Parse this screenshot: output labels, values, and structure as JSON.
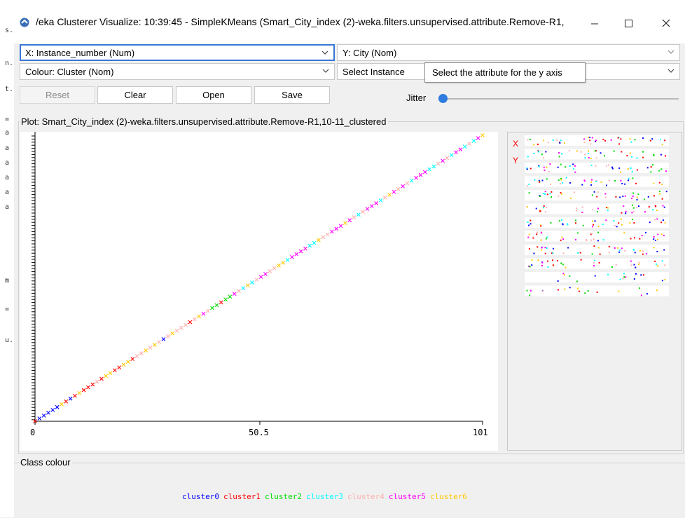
{
  "window": {
    "title": "/eka Clusterer Visualize: 10:39:45 - SimpleKMeans (Smart_City_index (2)-weka.filters.unsupervised.attribute.Remove-R1,"
  },
  "controls": {
    "x_axis": "X: Instance_number (Num)",
    "y_axis": "Y: City (Nom)",
    "colour": "Colour: Cluster (Nom)",
    "select_instance": "Select Instance",
    "tooltip": "Select the attribute for the y axis",
    "buttons": {
      "reset": "Reset",
      "clear": "Clear",
      "open": "Open",
      "save": "Save"
    },
    "jitter_label": "Jitter",
    "jitter_value": 0
  },
  "plot": {
    "title": "Plot: Smart_City_index (2)-weka.filters.unsupervised.attribute.Remove-R1,10-11_clustered",
    "x_ticks": [
      "0",
      "50.5",
      "101"
    ],
    "panel_labels": {
      "x": "X",
      "y": "Y"
    }
  },
  "chart_data": {
    "type": "scatter",
    "x_range": [
      0,
      101
    ],
    "x_ticks": [
      0,
      50.5,
      101
    ],
    "y_type": "nominal",
    "series_note": "points colored by cluster"
  },
  "class_colour": {
    "title": "Class colour",
    "items": [
      {
        "label": "cluster0",
        "color": "#0000ff"
      },
      {
        "label": "cluster1",
        "color": "#ff0000"
      },
      {
        "label": "cluster2",
        "color": "#00dd00"
      },
      {
        "label": "cluster3",
        "color": "#00ffff"
      },
      {
        "label": "cluster4",
        "color": "#ffafaf"
      },
      {
        "label": "cluster5",
        "color": "#ff00ff"
      },
      {
        "label": "cluster6",
        "color": "#ffc800"
      }
    ]
  },
  "left_strip": [
    "s.",
    "n.",
    "t.",
    "=",
    "a",
    "a",
    "a",
    "a",
    "a",
    "a",
    "m",
    "=",
    "u."
  ]
}
